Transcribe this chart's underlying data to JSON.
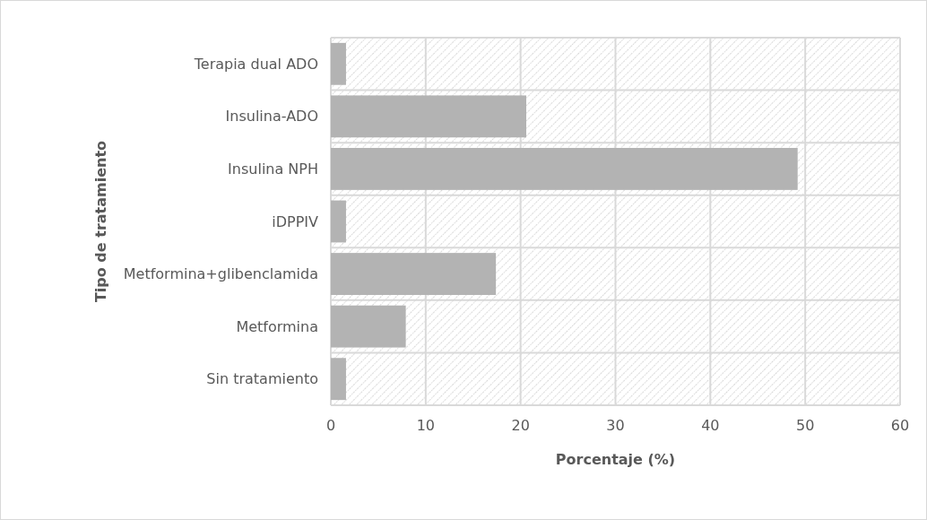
{
  "chart_data": {
    "type": "bar",
    "orientation": "horizontal",
    "xlabel": "Porcentaje (%)",
    "ylabel": "Tipo de tratamiento",
    "categories": [
      "Terapia dual ADO",
      "Insulina-ADO",
      "Insulina NPH",
      "iDPPIV",
      "Metformina+glibenclamida",
      "Metformina",
      "Sin tratamiento"
    ],
    "values": [
      1.6,
      20.6,
      49.2,
      1.6,
      17.4,
      7.9,
      1.6
    ],
    "color": "#b3b3b3",
    "xlim": [
      0,
      60
    ],
    "xticks": [
      0,
      10,
      20,
      30,
      40,
      50,
      60
    ],
    "grid": true
  }
}
